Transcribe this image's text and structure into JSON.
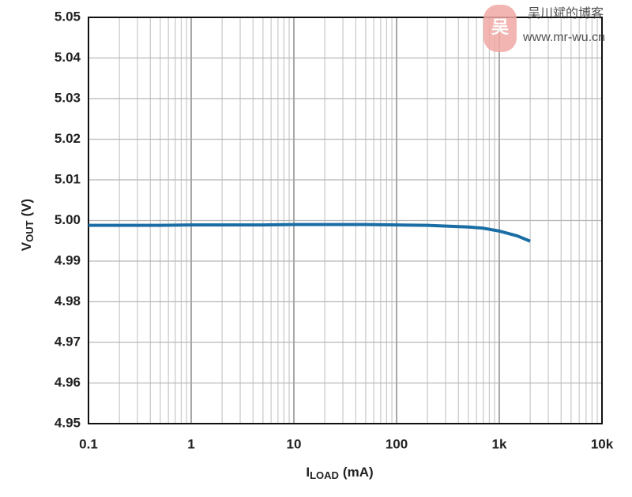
{
  "chart_data": {
    "type": "line",
    "xlabel": [
      "I",
      "LOAD",
      "(mA)"
    ],
    "ylabel": [
      "V",
      "OUT",
      "(V)"
    ],
    "x": [
      0.1,
      0.2,
      0.5,
      1,
      2,
      5,
      10,
      20,
      50,
      100,
      200,
      500,
      700,
      1000,
      1500,
      2000
    ],
    "series": [
      {
        "name": "VOUT",
        "color": "#1b6ea5",
        "values": [
          4.9988,
          4.9988,
          4.9988,
          4.9989,
          4.9989,
          4.9989,
          4.999,
          4.999,
          4.999,
          4.9989,
          4.9988,
          4.9984,
          4.9981,
          4.9974,
          4.9962,
          4.9949
        ]
      }
    ],
    "xlim": [
      0.1,
      10000
    ],
    "xscale": "log",
    "xticks": [
      0.1,
      1,
      10,
      100,
      {
        "value": 1000,
        "label": "1k"
      },
      {
        "value": 10000,
        "label": "10k"
      }
    ],
    "ylim": [
      4.95,
      5.05
    ],
    "yticks": [
      4.95,
      4.96,
      4.97,
      4.98,
      4.99,
      {
        "value": 5.0,
        "label": "5.00"
      },
      5.01,
      5.02,
      5.03,
      5.04,
      5.05
    ],
    "grid": true
  },
  "watermark": {
    "icon": "吴",
    "title": "吴川斌的博客",
    "url": "www.mr-wu.cn"
  }
}
